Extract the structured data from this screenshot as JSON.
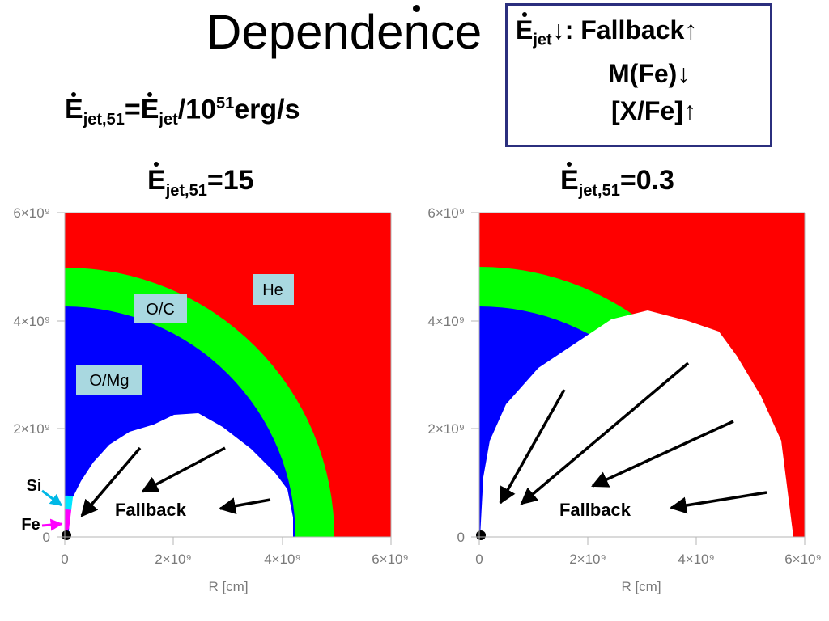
{
  "slide": {
    "title": "Dependence",
    "definition": {
      "e": "E",
      "sub1": "jet,51",
      "eq": "=",
      "e2": "E",
      "sub2": "jet",
      "rest": "/10",
      "exp": "51",
      "unit": "erg/s"
    }
  },
  "summary_box": {
    "line1_e": "E",
    "line1_sub": "jet",
    "line1_rest": "↓: Fallback↑",
    "line2": "M(Fe)↓",
    "line3": "[X/Fe]↑"
  },
  "panels": [
    {
      "label_e": "E",
      "label_sub": "jet,51",
      "label_value": "=15",
      "fallback_label": "Fallback",
      "region_labels": {
        "he": "He",
        "oc": "O/C",
        "omg": "O/Mg"
      },
      "pointer_labels": {
        "si": "Si",
        "fe": "Fe"
      }
    },
    {
      "label_e": "E",
      "label_sub": "jet,51",
      "label_value": "=0.3",
      "fallback_label": "Fallback"
    }
  ],
  "axes": {
    "x_label": "R [cm]",
    "x_ticks": [
      "0",
      "2×10⁹",
      "4×10⁹",
      "6×10⁹"
    ],
    "y_ticks": [
      "0",
      "2×10⁹",
      "4×10⁹",
      "6×10⁹"
    ]
  },
  "colors": {
    "he": "#ff0000",
    "oc": "#00ff00",
    "omg": "#0000ff",
    "si": "#00e5ff",
    "fe": "#ff00ff",
    "label_bg": "#a9d8e0",
    "box_border": "#2b2f7e",
    "axis": "#b5b5b5"
  }
}
